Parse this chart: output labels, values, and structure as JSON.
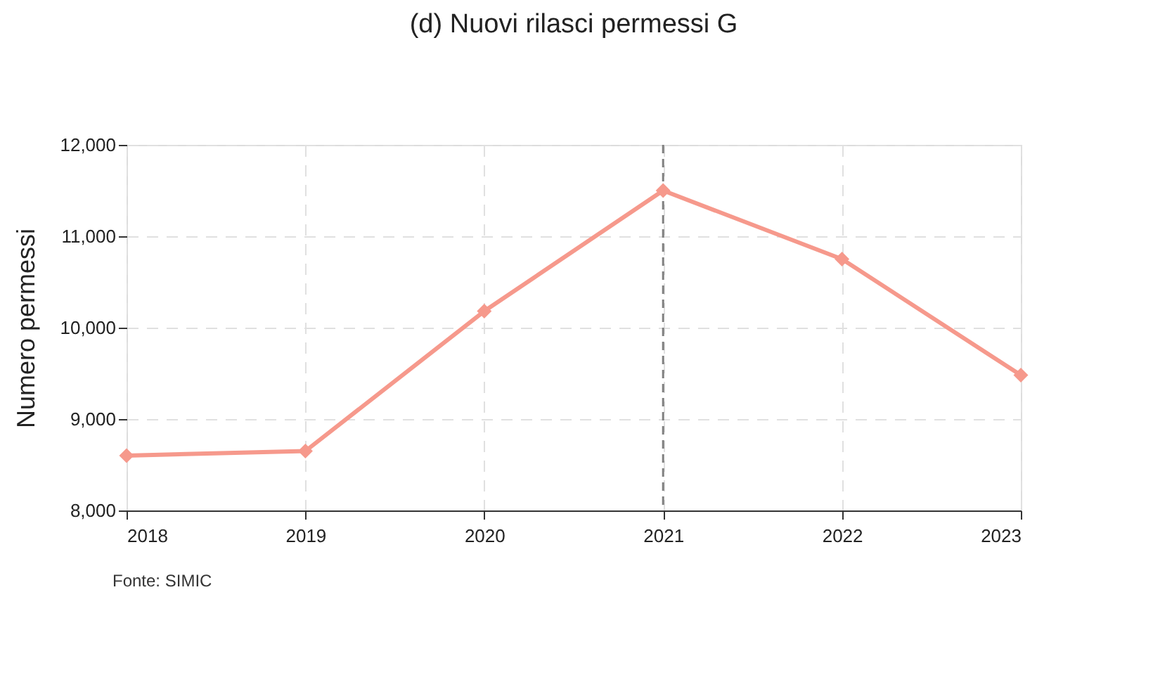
{
  "chart_data": {
    "type": "line",
    "title": "(d) Nuovi rilasci permessi G",
    "ylabel": "Numero permessi",
    "x": [
      2018,
      2019,
      2020,
      2021,
      2022,
      2023
    ],
    "series": [
      {
        "color": "#f6998c",
        "values": [
          8600,
          8650,
          10180,
          11500,
          10750,
          9480
        ]
      }
    ],
    "xlim": [
      2018,
      2023
    ],
    "xticks": [
      2018,
      2019,
      2020,
      2021,
      2022,
      2023
    ],
    "ylim": [
      8000,
      12000
    ],
    "yticks": [
      {
        "value": 8000,
        "label": "8,000"
      },
      {
        "value": 9000,
        "label": "9,000"
      },
      {
        "value": 10000,
        "label": "10,000"
      },
      {
        "value": 11000,
        "label": "11,000"
      },
      {
        "value": 12000,
        "label": "12,000"
      }
    ],
    "ref_lines": [
      {
        "axis": "x",
        "value": 2021,
        "color": "#808080",
        "line_style": "dashed"
      }
    ],
    "annotations": [
      "Fonte: SIMIC"
    ],
    "grid": true,
    "marker": "diamond",
    "line_style": "solid"
  }
}
